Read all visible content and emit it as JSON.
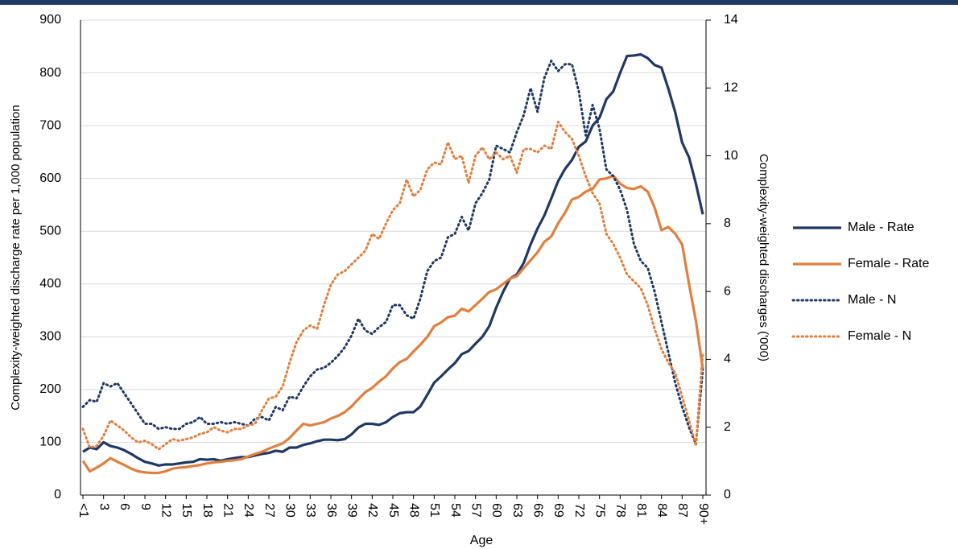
{
  "chart_data": {
    "type": "line",
    "x_label": "Age",
    "y_label": "Complexity-weighted discharge rate per 1,000 population",
    "y2_label": "Complexity-weighted discharges ('000)",
    "categories": [
      "<1",
      null,
      null,
      "3",
      null,
      null,
      "6",
      null,
      null,
      "9",
      null,
      null,
      "12",
      null,
      null,
      "15",
      null,
      null,
      "18",
      null,
      null,
      "21",
      null,
      null,
      "24",
      null,
      null,
      "27",
      null,
      null,
      "30",
      null,
      null,
      "33",
      null,
      null,
      "36",
      null,
      null,
      "39",
      null,
      null,
      "42",
      null,
      null,
      "45",
      null,
      null,
      "48",
      null,
      null,
      "51",
      null,
      null,
      "54",
      null,
      null,
      "57",
      null,
      null,
      "60",
      null,
      null,
      "63",
      null,
      null,
      "66",
      null,
      null,
      "69",
      null,
      null,
      "72",
      null,
      null,
      "75",
      null,
      null,
      "78",
      null,
      null,
      "81",
      null,
      null,
      "84",
      null,
      null,
      "87",
      null,
      null,
      "90+"
    ],
    "ylim": [
      0,
      900
    ],
    "yticks": [
      0,
      100,
      200,
      300,
      400,
      500,
      600,
      700,
      800,
      900
    ],
    "y2lim": [
      0,
      14
    ],
    "y2ticks": [
      0,
      2,
      4,
      6,
      8,
      10,
      12,
      14
    ],
    "grid": true,
    "series": [
      {
        "name": "Male - Rate",
        "color": "#203864",
        "style": "solid",
        "values": [
          82,
          90,
          87,
          100,
          93,
          90,
          85,
          78,
          70,
          63,
          60,
          56,
          58,
          58,
          60,
          62,
          63,
          68,
          67,
          68,
          65,
          68,
          70,
          72,
          72,
          75,
          78,
          80,
          84,
          82,
          90,
          90,
          95,
          98,
          102,
          105,
          105,
          104,
          106,
          115,
          128,
          135,
          135,
          133,
          138,
          148,
          155,
          157,
          157,
          168,
          190,
          213,
          225,
          238,
          250,
          267,
          273,
          287,
          300,
          320,
          355,
          385,
          410,
          418,
          440,
          475,
          505,
          530,
          562,
          595,
          618,
          635,
          660,
          670,
          700,
          715,
          750,
          765,
          800,
          832,
          833,
          835,
          828,
          815,
          810,
          770,
          725,
          668,
          640,
          590,
          532
        ]
      },
      {
        "name": "Female - Rate",
        "color": "#e07f3e",
        "style": "solid",
        "values": [
          65,
          45,
          52,
          60,
          70,
          63,
          57,
          50,
          45,
          43,
          42,
          42,
          45,
          50,
          52,
          53,
          55,
          57,
          60,
          62,
          63,
          65,
          66,
          68,
          73,
          78,
          82,
          88,
          93,
          98,
          108,
          122,
          135,
          132,
          135,
          138,
          145,
          150,
          157,
          168,
          182,
          195,
          203,
          215,
          225,
          240,
          252,
          258,
          272,
          285,
          300,
          320,
          327,
          337,
          340,
          353,
          348,
          360,
          372,
          385,
          390,
          400,
          410,
          415,
          430,
          445,
          460,
          480,
          490,
          515,
          535,
          560,
          565,
          575,
          580,
          598,
          600,
          605,
          590,
          582,
          580,
          585,
          575,
          545,
          502,
          508,
          495,
          475,
          400,
          330,
          240
        ]
      },
      {
        "name": "Male - N",
        "color": "#203864",
        "style": "dotted",
        "axis": "y2",
        "values": [
          2.6,
          2.8,
          2.75,
          3.3,
          3.2,
          3.3,
          3.0,
          2.7,
          2.4,
          2.1,
          2.1,
          1.95,
          2.0,
          1.95,
          1.95,
          2.1,
          2.15,
          2.3,
          2.1,
          2.1,
          2.15,
          2.1,
          2.15,
          2.1,
          2.05,
          2.25,
          2.3,
          2.2,
          2.6,
          2.5,
          2.9,
          2.85,
          3.2,
          3.5,
          3.7,
          3.75,
          3.9,
          4.1,
          4.35,
          4.7,
          5.2,
          4.85,
          4.75,
          4.95,
          5.1,
          5.6,
          5.6,
          5.3,
          5.2,
          5.8,
          6.6,
          6.9,
          7.0,
          7.6,
          7.7,
          8.2,
          7.8,
          8.6,
          8.9,
          9.3,
          10.3,
          10.2,
          10.1,
          10.7,
          11.2,
          12.0,
          11.3,
          12.3,
          12.8,
          12.5,
          12.7,
          12.7,
          11.9,
          10.6,
          11.5,
          10.8,
          9.6,
          9.4,
          9.0,
          8.4,
          7.4,
          6.9,
          6.7,
          6.0,
          5.1,
          4.2,
          3.3,
          2.6,
          2.0,
          1.5,
          3.7
        ]
      },
      {
        "name": "Female - N",
        "color": "#e07f3e",
        "style": "dotted",
        "axis": "y2",
        "values": [
          1.95,
          1.4,
          1.45,
          1.75,
          2.2,
          2.05,
          1.9,
          1.7,
          1.55,
          1.6,
          1.5,
          1.35,
          1.5,
          1.65,
          1.6,
          1.65,
          1.7,
          1.8,
          1.85,
          2.0,
          1.9,
          1.85,
          1.95,
          1.95,
          2.05,
          2.1,
          2.5,
          2.85,
          2.9,
          3.2,
          3.9,
          4.5,
          4.85,
          5.0,
          4.9,
          5.6,
          6.2,
          6.5,
          6.6,
          6.8,
          7.0,
          7.2,
          7.7,
          7.55,
          8.0,
          8.4,
          8.6,
          9.3,
          8.8,
          9.0,
          9.6,
          9.8,
          9.75,
          10.4,
          9.9,
          10.0,
          9.2,
          10.0,
          10.25,
          9.9,
          10.1,
          9.9,
          10.0,
          9.5,
          10.2,
          10.2,
          10.1,
          10.3,
          10.2,
          11.0,
          10.7,
          10.5,
          10.0,
          9.4,
          8.9,
          8.6,
          7.7,
          7.4,
          7.0,
          6.5,
          6.3,
          6.1,
          5.6,
          4.9,
          4.3,
          3.9,
          3.6,
          2.9,
          2.2,
          1.45,
          4.2
        ]
      }
    ]
  }
}
